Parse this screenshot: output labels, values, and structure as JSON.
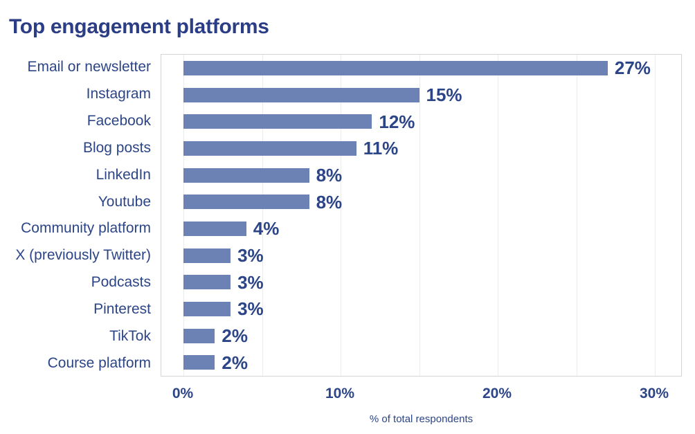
{
  "colors": {
    "title": "#2b3d85",
    "text": "#2c4587",
    "bar": "#6c82b4",
    "gridline": "#ececec",
    "plot_border": "#d5d5d5",
    "background": "#ffffff"
  },
  "chart_data": {
    "type": "bar",
    "orientation": "horizontal",
    "title": "Top engagement platforms",
    "xlabel": "% of total respondents",
    "categories": [
      "Email or newsletter",
      "Instagram",
      "Facebook",
      "Blog posts",
      "LinkedIn",
      "Youtube",
      "Community platform",
      "X (previously Twitter)",
      "Podcasts",
      "Pinterest",
      "TikTok",
      "Course platform"
    ],
    "values": [
      27,
      15,
      12,
      11,
      8,
      8,
      4,
      3,
      3,
      3,
      2,
      2
    ],
    "value_labels": [
      "27%",
      "15%",
      "12%",
      "11%",
      "8%",
      "8%",
      "4%",
      "3%",
      "3%",
      "3%",
      "2%",
      "2%"
    ],
    "xticks": [
      {
        "value": 0,
        "label": "0%"
      },
      {
        "value": 10,
        "label": "10%"
      },
      {
        "value": 20,
        "label": "20%"
      },
      {
        "value": 30,
        "label": "30%"
      }
    ],
    "gridline_values": [
      0,
      5,
      10,
      15,
      20,
      25,
      30
    ],
    "xlim": [
      -1.4,
      31.8
    ],
    "grid": "vertical, every 5%",
    "legend": "none"
  }
}
